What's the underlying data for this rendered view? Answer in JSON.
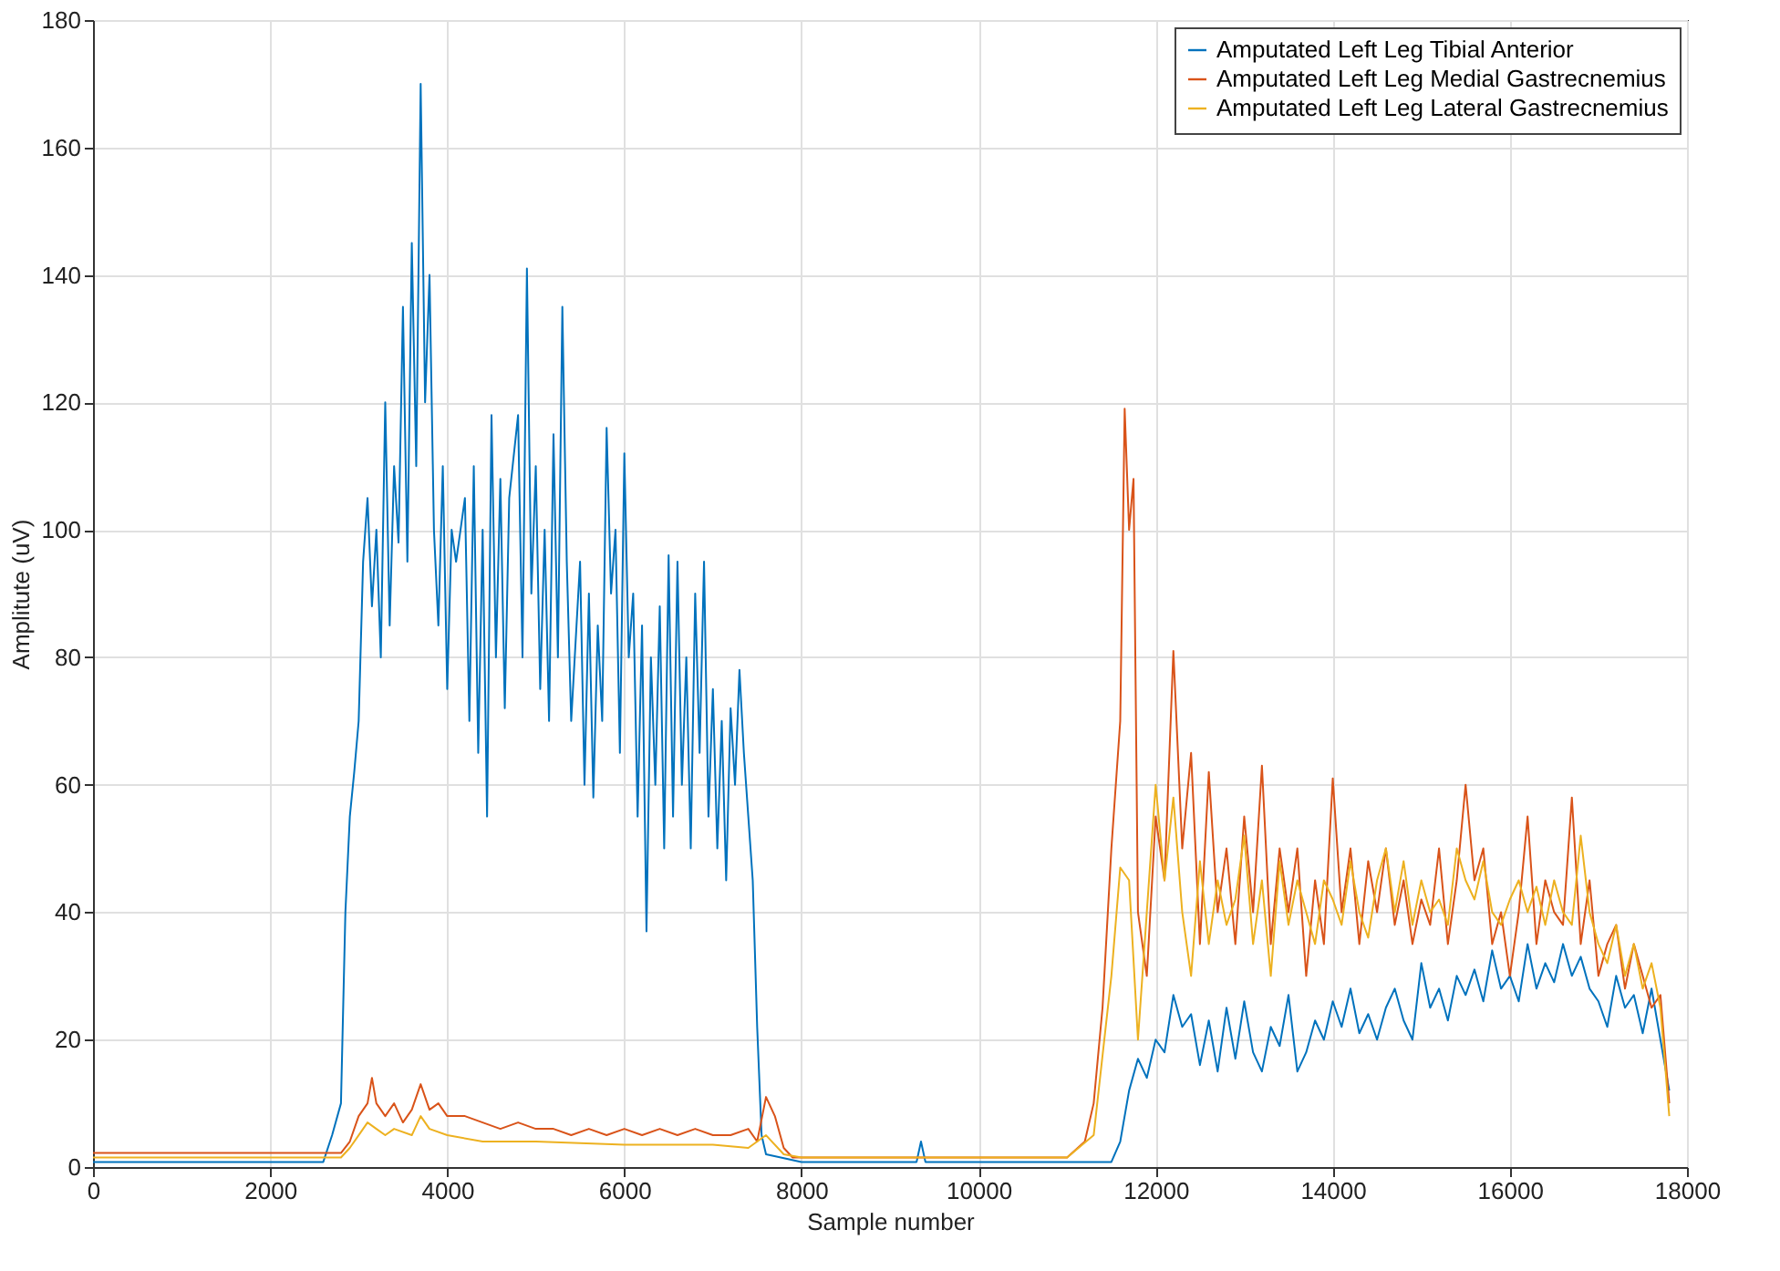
{
  "chart_data": {
    "type": "line",
    "xlabel": "Sample number",
    "ylabel": "Amplitute (uV)",
    "xlim": [
      0,
      18000
    ],
    "xticks": [
      0,
      2000,
      4000,
      6000,
      8000,
      10000,
      12000,
      14000,
      16000,
      18000
    ],
    "ylim": [
      0,
      180
    ],
    "yticks": [
      0,
      20,
      40,
      60,
      80,
      100,
      120,
      140,
      160,
      180
    ],
    "grid": true,
    "legend": "top right",
    "line_style": "solid",
    "marker": "none",
    "series": [
      {
        "name": "Amputated Left Leg Tibial Anterior",
        "color": "#0072bd",
        "x": [
          0,
          1000,
          2000,
          2600,
          2700,
          2800,
          2850,
          2900,
          2950,
          3000,
          3050,
          3100,
          3150,
          3200,
          3250,
          3300,
          3350,
          3400,
          3450,
          3500,
          3550,
          3600,
          3650,
          3700,
          3750,
          3800,
          3850,
          3900,
          3950,
          4000,
          4050,
          4100,
          4200,
          4250,
          4300,
          4350,
          4400,
          4450,
          4500,
          4550,
          4600,
          4650,
          4700,
          4800,
          4850,
          4900,
          4950,
          5000,
          5050,
          5100,
          5150,
          5200,
          5250,
          5300,
          5350,
          5400,
          5500,
          5550,
          5600,
          5650,
          5700,
          5750,
          5800,
          5850,
          5900,
          5950,
          6000,
          6050,
          6100,
          6150,
          6200,
          6250,
          6300,
          6350,
          6400,
          6450,
          6500,
          6550,
          6600,
          6650,
          6700,
          6750,
          6800,
          6850,
          6900,
          6950,
          7000,
          7050,
          7100,
          7150,
          7200,
          7250,
          7300,
          7350,
          7400,
          7450,
          7500,
          7550,
          7600,
          8000,
          9300,
          9350,
          9400,
          11500,
          11600,
          11700,
          11800,
          11900,
          12000,
          12100,
          12200,
          12300,
          12400,
          12500,
          12600,
          12700,
          12800,
          12900,
          13000,
          13100,
          13200,
          13300,
          13400,
          13500,
          13600,
          13700,
          13800,
          13900,
          14000,
          14100,
          14200,
          14300,
          14400,
          14500,
          14600,
          14700,
          14800,
          14900,
          15000,
          15100,
          15200,
          15300,
          15400,
          15500,
          15600,
          15700,
          15800,
          15900,
          16000,
          16100,
          16200,
          16300,
          16400,
          16500,
          16600,
          16700,
          16800,
          16900,
          17000,
          17100,
          17200,
          17300,
          17400,
          17500,
          17600,
          17700,
          17800
        ],
        "values": [
          0.8,
          0.8,
          0.8,
          0.8,
          5,
          10,
          40,
          55,
          62,
          70,
          95,
          105,
          88,
          100,
          80,
          120,
          85,
          110,
          98,
          135,
          95,
          145,
          110,
          170,
          120,
          140,
          100,
          85,
          110,
          75,
          100,
          95,
          105,
          70,
          110,
          65,
          100,
          55,
          118,
          80,
          108,
          72,
          105,
          118,
          80,
          141,
          90,
          110,
          75,
          100,
          70,
          115,
          80,
          135,
          95,
          70,
          95,
          60,
          90,
          58,
          85,
          70,
          116,
          90,
          100,
          65,
          112,
          80,
          90,
          55,
          85,
          37,
          80,
          60,
          88,
          50,
          96,
          55,
          95,
          60,
          80,
          50,
          90,
          65,
          95,
          55,
          75,
          50,
          70,
          45,
          72,
          60,
          78,
          65,
          55,
          45,
          22,
          5,
          2,
          0.8,
          0.8,
          4,
          0.8,
          0.8,
          4,
          12,
          17,
          14,
          20,
          18,
          27,
          22,
          24,
          16,
          23,
          15,
          25,
          17,
          26,
          18,
          15,
          22,
          19,
          27,
          15,
          18,
          23,
          20,
          26,
          22,
          28,
          21,
          24,
          20,
          25,
          28,
          23,
          20,
          32,
          25,
          28,
          23,
          30,
          27,
          31,
          26,
          34,
          28,
          30,
          26,
          35,
          28,
          32,
          29,
          35,
          30,
          33,
          28,
          26,
          22,
          30,
          25,
          27,
          21,
          28,
          20,
          12
        ]
      },
      {
        "name": "Amputated Left Leg Medial Gastrecnemius",
        "color": "#d95319",
        "x": [
          0,
          1000,
          2000,
          2800,
          2900,
          3000,
          3100,
          3150,
          3200,
          3300,
          3400,
          3500,
          3600,
          3700,
          3800,
          3900,
          4000,
          4200,
          4400,
          4600,
          4800,
          5000,
          5200,
          5400,
          5600,
          5800,
          6000,
          6200,
          6400,
          6600,
          6800,
          7000,
          7200,
          7400,
          7500,
          7600,
          7700,
          7800,
          7900,
          9000,
          10000,
          11000,
          11200,
          11300,
          11400,
          11500,
          11600,
          11650,
          11700,
          11750,
          11800,
          11900,
          12000,
          12100,
          12200,
          12300,
          12400,
          12500,
          12600,
          12700,
          12800,
          12900,
          13000,
          13100,
          13200,
          13300,
          13400,
          13500,
          13600,
          13700,
          13800,
          13900,
          14000,
          14100,
          14200,
          14300,
          14400,
          14500,
          14600,
          14700,
          14800,
          14900,
          15000,
          15100,
          15200,
          15300,
          15400,
          15500,
          15600,
          15700,
          15800,
          15900,
          16000,
          16100,
          16200,
          16300,
          16400,
          16500,
          16600,
          16700,
          16800,
          16900,
          17000,
          17100,
          17200,
          17300,
          17400,
          17500,
          17600,
          17700,
          17800
        ],
        "values": [
          2.2,
          2.2,
          2.2,
          2.2,
          4,
          8,
          10,
          14,
          10,
          8,
          10,
          7,
          9,
          13,
          9,
          10,
          8,
          8,
          7,
          6,
          7,
          6,
          6,
          5,
          6,
          5,
          6,
          5,
          6,
          5,
          6,
          5,
          5,
          6,
          4,
          11,
          8,
          3,
          1.5,
          1.5,
          1.5,
          1.5,
          4,
          10,
          25,
          50,
          70,
          119,
          100,
          108,
          40,
          30,
          55,
          45,
          81,
          50,
          65,
          35,
          62,
          40,
          50,
          35,
          55,
          40,
          63,
          35,
          50,
          40,
          50,
          30,
          45,
          35,
          61,
          40,
          50,
          35,
          48,
          40,
          50,
          38,
          45,
          35,
          42,
          38,
          50,
          35,
          45,
          60,
          45,
          50,
          35,
          40,
          30,
          40,
          55,
          35,
          45,
          40,
          38,
          58,
          35,
          45,
          30,
          35,
          38,
          28,
          35,
          30,
          25,
          27,
          10
        ]
      },
      {
        "name": "Amputated Left Leg Lateral Gastrecnemius",
        "color": "#edb120",
        "x": [
          0,
          1000,
          2000,
          2800,
          2900,
          3000,
          3100,
          3200,
          3300,
          3400,
          3600,
          3700,
          3800,
          4000,
          4400,
          5000,
          6000,
          7000,
          7400,
          7600,
          7800,
          8000,
          9000,
          10000,
          11000,
          11300,
          11500,
          11600,
          11700,
          11800,
          11900,
          12000,
          12100,
          12200,
          12300,
          12400,
          12500,
          12600,
          12700,
          12800,
          12900,
          13000,
          13100,
          13200,
          13300,
          13400,
          13500,
          13600,
          13700,
          13800,
          13900,
          14000,
          14100,
          14200,
          14300,
          14400,
          14500,
          14600,
          14700,
          14800,
          14900,
          15000,
          15100,
          15200,
          15300,
          15400,
          15500,
          15600,
          15700,
          15800,
          15900,
          16000,
          16100,
          16200,
          16300,
          16400,
          16500,
          16600,
          16700,
          16800,
          16900,
          17000,
          17100,
          17200,
          17300,
          17400,
          17500,
          17600,
          17700,
          17800
        ],
        "values": [
          1.5,
          1.5,
          1.5,
          1.5,
          3,
          5,
          7,
          6,
          5,
          6,
          5,
          8,
          6,
          5,
          4,
          4,
          3.5,
          3.5,
          3,
          5,
          2,
          1.5,
          1.5,
          1.5,
          1.5,
          5,
          30,
          47,
          45,
          20,
          40,
          60,
          45,
          58,
          40,
          30,
          48,
          35,
          45,
          38,
          42,
          52,
          35,
          45,
          30,
          48,
          38,
          45,
          40,
          35,
          45,
          42,
          38,
          48,
          40,
          36,
          45,
          50,
          40,
          48,
          38,
          45,
          40,
          42,
          38,
          50,
          45,
          42,
          48,
          40,
          38,
          42,
          45,
          40,
          44,
          38,
          45,
          40,
          38,
          52,
          40,
          35,
          32,
          38,
          30,
          35,
          28,
          32,
          25,
          8
        ]
      }
    ]
  }
}
